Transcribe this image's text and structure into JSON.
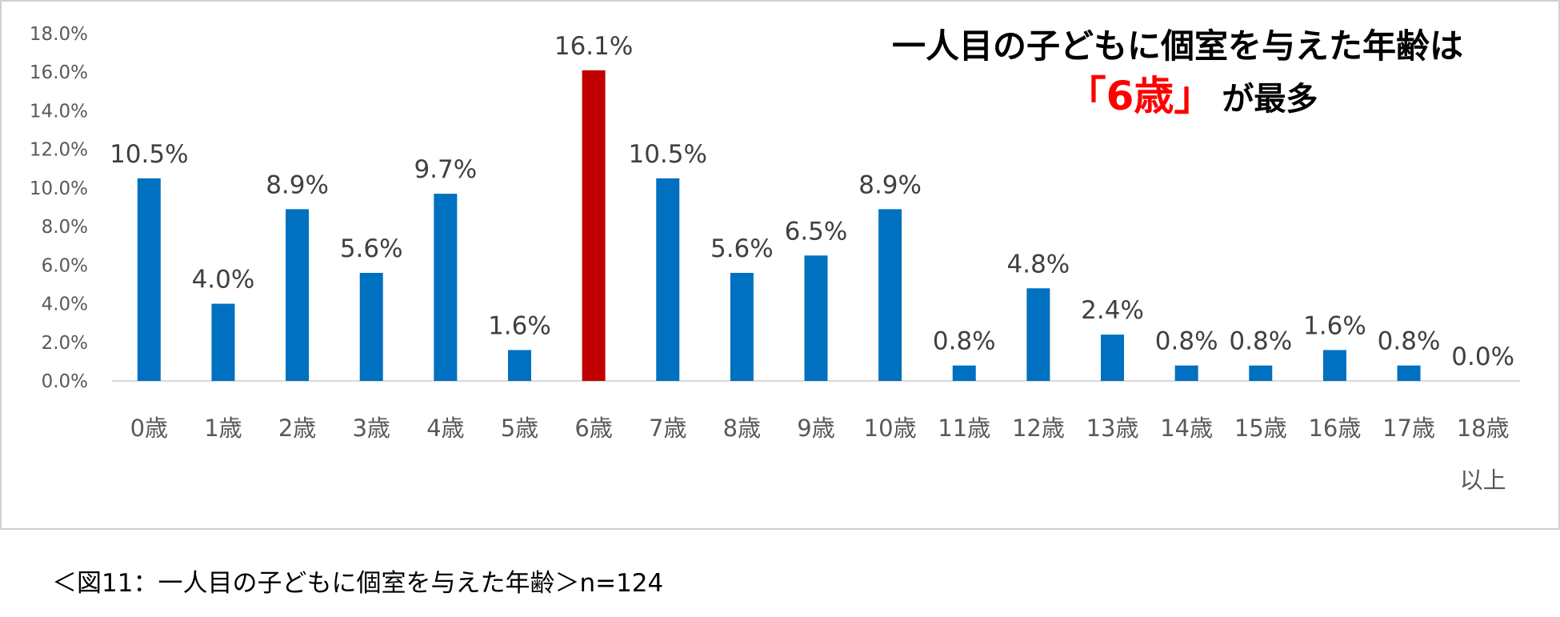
{
  "chart_data": {
    "type": "bar",
    "categories": [
      "0歳",
      "1歳",
      "2歳",
      "3歳",
      "4歳",
      "5歳",
      "6歳",
      "7歳",
      "8歳",
      "9歳",
      "10歳",
      "11歳",
      "12歳",
      "13歳",
      "14歳",
      "15歳",
      "16歳",
      "17歳",
      "18歳"
    ],
    "category_suffix_last": "以上",
    "values": [
      10.5,
      4.0,
      8.9,
      5.6,
      9.7,
      1.6,
      16.1,
      10.5,
      5.6,
      6.5,
      8.9,
      0.8,
      4.8,
      2.4,
      0.8,
      0.8,
      1.6,
      0.8,
      0.0
    ],
    "value_labels": [
      "10.5%",
      "4.0%",
      "8.9%",
      "5.6%",
      "9.7%",
      "1.6%",
      "16.1%",
      "10.5%",
      "5.6%",
      "6.5%",
      "8.9%",
      "0.8%",
      "4.8%",
      "2.4%",
      "0.8%",
      "0.8%",
      "1.6%",
      "0.8%",
      "0.0%"
    ],
    "highlight_index": 6,
    "ylim": [
      0,
      18
    ],
    "yticks": [
      "0.0%",
      "2.0%",
      "4.0%",
      "6.0%",
      "8.0%",
      "10.0%",
      "12.0%",
      "14.0%",
      "16.0%",
      "18.0%"
    ],
    "grid": false,
    "headline_line1": "一人目の子どもに個室を与えた年齢は",
    "headline_red": "「6歳」",
    "headline_tail": "が最多",
    "colors": {
      "bar": "#0070c0",
      "highlight": "#c00000",
      "axis": "#d9d9d9",
      "border": "#d0d0d0"
    }
  },
  "caption": "＜図11：一人目の子どもに個室を与えた年齢＞n=124"
}
